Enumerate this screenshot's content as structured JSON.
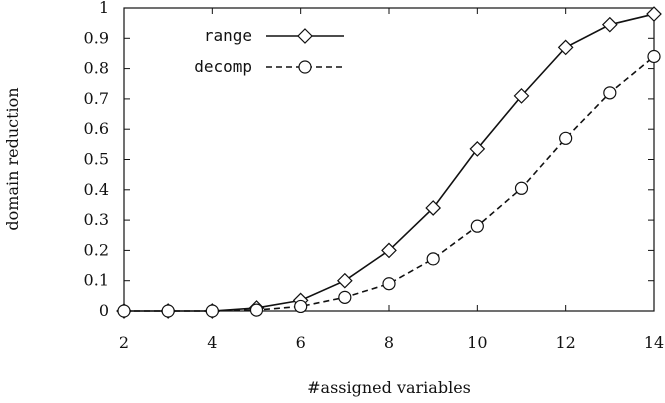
{
  "chart_data": {
    "type": "line",
    "title": "",
    "xlabel": "#assigned variables",
    "ylabel": "domain reduction",
    "xlim": [
      2,
      14
    ],
    "ylim": [
      0,
      1
    ],
    "xticks": [
      2,
      4,
      6,
      8,
      10,
      12,
      14
    ],
    "xtick_labels": [
      "2",
      "4",
      "6",
      "8",
      "10",
      "12",
      "14"
    ],
    "yticks": [
      0,
      0.1,
      0.2,
      0.3,
      0.4,
      0.5,
      0.6,
      0.7,
      0.8,
      0.9,
      1
    ],
    "ytick_labels": [
      "0",
      "0.1",
      "0.2",
      "0.3",
      "0.4",
      "0.5",
      "0.6",
      "0.7",
      "0.8",
      "0.9",
      "1"
    ],
    "grid": false,
    "legend_position": "top-left",
    "series": [
      {
        "name": "range",
        "line_style": "solid",
        "marker": "diamond",
        "x": [
          2,
          3,
          4,
          5,
          6,
          7,
          8,
          9,
          10,
          11,
          12,
          13,
          14
        ],
        "values": [
          0,
          0,
          0,
          0.01,
          0.035,
          0.1,
          0.2,
          0.34,
          0.535,
          0.71,
          0.87,
          0.945,
          0.98
        ]
      },
      {
        "name": "decomp",
        "line_style": "dashed",
        "marker": "circle",
        "x": [
          2,
          3,
          4,
          5,
          6,
          7,
          8,
          9,
          10,
          11,
          12,
          13,
          14
        ],
        "values": [
          0,
          0,
          0,
          0.003,
          0.015,
          0.045,
          0.09,
          0.172,
          0.28,
          0.405,
          0.57,
          0.72,
          0.84
        ]
      }
    ]
  }
}
